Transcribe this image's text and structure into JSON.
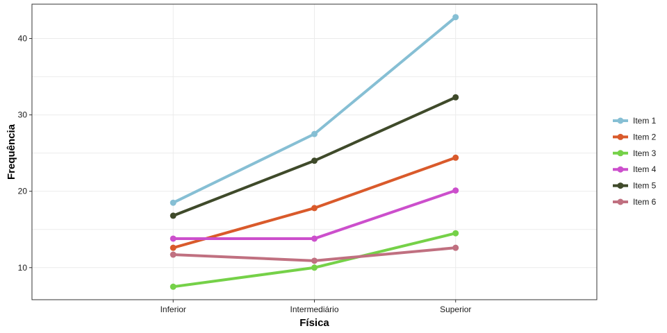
{
  "chart_data": {
    "type": "line",
    "xlabel": "Física",
    "ylabel": "Frequência",
    "categories": [
      "Inferior",
      "Intermediário",
      "Superior"
    ],
    "ylim": [
      5.8,
      44.5
    ],
    "yticks": [
      10,
      20,
      30,
      40
    ],
    "grid": true,
    "legend_position": "right",
    "series": [
      {
        "name": "Item 1",
        "color": "#86BFD4",
        "values": [
          18.5,
          27.5,
          42.8
        ]
      },
      {
        "name": "Item 2",
        "color": "#D95A2B",
        "values": [
          12.6,
          17.8,
          24.4
        ]
      },
      {
        "name": "Item 3",
        "color": "#75D148",
        "values": [
          7.5,
          10.0,
          14.5
        ]
      },
      {
        "name": "Item 4",
        "color": "#CC4FCC",
        "values": [
          13.8,
          13.8,
          20.1
        ]
      },
      {
        "name": "Item 5",
        "color": "#3F4A2A",
        "values": [
          16.8,
          24.0,
          32.3
        ]
      },
      {
        "name": "Item 6",
        "color": "#C07080",
        "values": [
          11.7,
          10.9,
          12.6
        ]
      }
    ]
  }
}
